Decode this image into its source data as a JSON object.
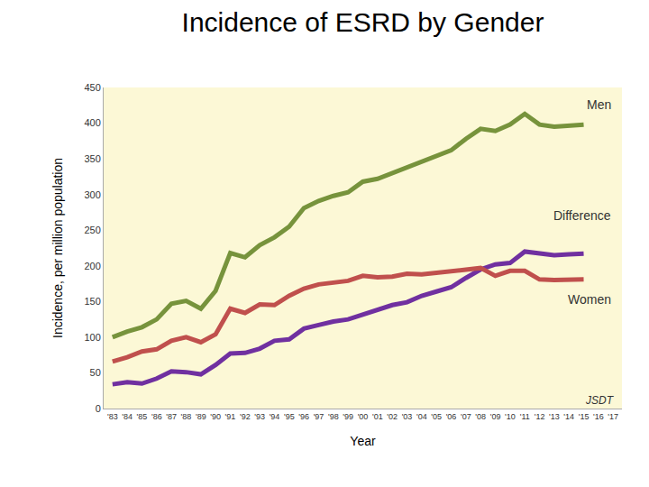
{
  "chart_data": {
    "type": "line",
    "title": "Incidence of ESRD by Gender",
    "x_label": "Year",
    "y_label": "Incidence, per million population",
    "categories": [
      "'83",
      "'84",
      "'85",
      "'86",
      "'87",
      "'88",
      "'89",
      "'90",
      "'91",
      "'92",
      "'93",
      "'94",
      "'95",
      "'96",
      "'97",
      "'98",
      "'99",
      "'00",
      "'01",
      "'02",
      "'03",
      "'04",
      "'05",
      "'06",
      "'07",
      "'08",
      "'09",
      "'10",
      "'11",
      "'12",
      "'13",
      "'14",
      "'15",
      "'16",
      "'17"
    ],
    "series": [
      {
        "name": "Men",
        "color": "#77933c",
        "values": [
          100,
          108,
          114,
          125,
          147,
          151,
          140,
          165,
          218,
          212,
          229,
          240,
          255,
          281,
          291,
          298,
          303,
          318,
          322,
          330,
          339,
          346,
          354,
          362,
          378,
          392,
          389,
          398,
          413,
          398,
          395,
          397,
          398,
          null,
          null
        ]
      },
      {
        "name": "Difference",
        "color": "#7030a0",
        "values": [
          34,
          37,
          35,
          42,
          52,
          51,
          48,
          61,
          77,
          78,
          84,
          95,
          97,
          112,
          117,
          122,
          125,
          132,
          138,
          145,
          149,
          158,
          164,
          170,
          183,
          195,
          202,
          204,
          220,
          218,
          215,
          216,
          217,
          null,
          null
        ]
      },
      {
        "name": "Women",
        "color": "#c0504d",
        "values": [
          66,
          72,
          80,
          83,
          95,
          100,
          93,
          104,
          140,
          134,
          146,
          145,
          158,
          168,
          174,
          177,
          179,
          186,
          184,
          185,
          189,
          188,
          190,
          192,
          195,
          197,
          186,
          193,
          193,
          181,
          180,
          181,
          181,
          null,
          null
        ]
      }
    ],
    "ylim": [
      0,
      450
    ],
    "yticks": [
      0,
      50,
      100,
      150,
      200,
      250,
      300,
      350,
      400,
      450
    ],
    "grid": false,
    "annotations": [
      {
        "text": "JSDT"
      }
    ]
  }
}
